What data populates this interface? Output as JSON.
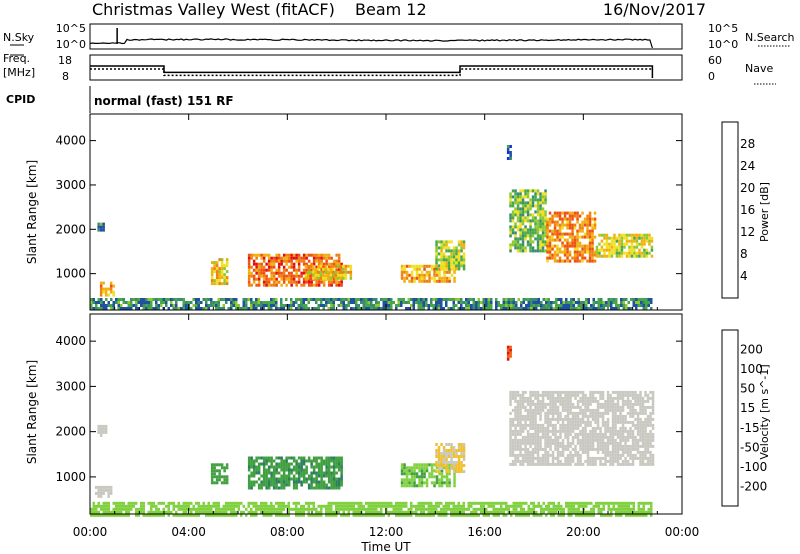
{
  "header": {
    "station": "Christmas Valley West (fitACF)",
    "beam": "Beam 12",
    "date": "16/Nov/2017"
  },
  "labels": {
    "nsky": "N.Sky",
    "nsky_hi": "10^5",
    "nsky_lo": "10^0",
    "nsearch": "N.Search",
    "nsearch_hi": "10^5",
    "nsearch_lo": "10^0",
    "freq_line1": "Freq.",
    "freq_line2": "[MHz]",
    "freq_hi": "18",
    "freq_lo": "8",
    "nave": "Nave",
    "nave_hi": "60",
    "nave_lo": "0",
    "cpid": "CPID",
    "cpid_value": "normal (fast) 151 RF"
  },
  "colors": {
    "power_scale": [
      "#1030e0",
      "#2050a0",
      "#3a8c70",
      "#48a848",
      "#90c830",
      "#f0e020",
      "#f0b010",
      "#f08010",
      "#f05010",
      "#e01010"
    ],
    "velocity_scale": [
      "#1028c0",
      "#2050a0",
      "#2c7e60",
      "#40a040",
      "#80d040",
      "#c8c8c0",
      "#f0c030",
      "#f09010",
      "#f06010",
      "#e01010"
    ],
    "ground_scatter": "#c8c8c0"
  },
  "chart_data": [
    {
      "type": "heatmap",
      "title": "Power",
      "xlabel": "",
      "ylabel": "Slant Range [km]",
      "xlim": [
        "00:00",
        "24:00"
      ],
      "x_ticks": [
        "00:00",
        "04:00",
        "08:00",
        "12:00",
        "16:00",
        "20:00",
        "00:00"
      ],
      "ylim": [
        180,
        4600
      ],
      "y_ticks": [
        1000,
        2000,
        3000,
        4000
      ],
      "colorbar": {
        "label": "Power [dB]",
        "ticks": [
          4,
          8,
          12,
          16,
          20,
          24,
          28
        ],
        "range": [
          0,
          30
        ]
      },
      "patches": [
        {
          "t": [
            0.4,
            1.0
          ],
          "r": [
            500,
            820
          ],
          "v": 20
        },
        {
          "t": [
            0.3,
            0.6
          ],
          "r": [
            1950,
            2150
          ],
          "v": 8
        },
        {
          "t": [
            4.9,
            5.6
          ],
          "r": [
            800,
            1350
          ],
          "v": 18
        },
        {
          "t": [
            6.4,
            10.2
          ],
          "r": [
            750,
            1450
          ],
          "v": 24
        },
        {
          "t": [
            8.7,
            10.6
          ],
          "r": [
            900,
            1200
          ],
          "v": 18
        },
        {
          "t": [
            12.6,
            14.8
          ],
          "r": [
            800,
            1200
          ],
          "v": 20
        },
        {
          "t": [
            14.0,
            15.2
          ],
          "r": [
            1100,
            1750
          ],
          "v": 14
        },
        {
          "t": [
            16.9,
            17.1
          ],
          "r": [
            3600,
            3900
          ],
          "v": 6
        },
        {
          "t": [
            17.0,
            18.5
          ],
          "r": [
            1500,
            2900
          ],
          "v": 12
        },
        {
          "t": [
            18.5,
            20.5
          ],
          "r": [
            1300,
            2400
          ],
          "v": 22
        },
        {
          "t": [
            20.5,
            22.8
          ],
          "r": [
            1400,
            1900
          ],
          "v": 16
        },
        {
          "t": [
            0.0,
            22.8
          ],
          "r": [
            180,
            450
          ],
          "v": 8
        }
      ]
    },
    {
      "type": "heatmap",
      "title": "Velocity",
      "xlabel": "Time UT",
      "ylabel": "Slant Range [km]",
      "xlim": [
        "00:00",
        "24:00"
      ],
      "x_ticks": [
        "00:00",
        "04:00",
        "08:00",
        "12:00",
        "16:00",
        "20:00",
        "00:00"
      ],
      "ylim": [
        180,
        4600
      ],
      "y_ticks": [
        1000,
        2000,
        3000,
        4000
      ],
      "colorbar": {
        "label": "Velocity [m s^-1]",
        "ticks": [
          "200",
          "100",
          "50",
          "15",
          "-15",
          "-50",
          "-100",
          "-200"
        ],
        "range": [
          -250,
          250
        ]
      },
      "patches": [
        {
          "t": [
            0.2,
            0.9
          ],
          "r": [
            550,
            800
          ],
          "v": 30
        },
        {
          "t": [
            0.3,
            0.7
          ],
          "r": [
            1950,
            2150
          ],
          "v": 0
        },
        {
          "t": [
            4.9,
            5.6
          ],
          "r": [
            850,
            1300
          ],
          "v": -70
        },
        {
          "t": [
            6.4,
            10.2
          ],
          "r": [
            750,
            1450
          ],
          "v": -90
        },
        {
          "t": [
            12.6,
            14.8
          ],
          "r": [
            800,
            1300
          ],
          "v": -40
        },
        {
          "t": [
            14.0,
            15.2
          ],
          "r": [
            1100,
            1750
          ],
          "v": 60
        },
        {
          "t": [
            16.9,
            17.1
          ],
          "r": [
            3600,
            3900
          ],
          "v": 200
        },
        {
          "t": [
            17.0,
            22.8
          ],
          "r": [
            1300,
            2900
          ],
          "v": 0
        },
        {
          "t": [
            0.0,
            22.8
          ],
          "r": [
            180,
            450
          ],
          "v": -20
        }
      ]
    }
  ],
  "time_series": {
    "nsky_spike_hour": 1.1,
    "freq_steps": [
      {
        "start": 0.0,
        "end": 3.0,
        "mhz": 14.0
      },
      {
        "start": 3.0,
        "end": 15.0,
        "mhz": 10.8
      },
      {
        "start": 15.0,
        "end": 22.8,
        "mhz": 14.0
      }
    ]
  }
}
